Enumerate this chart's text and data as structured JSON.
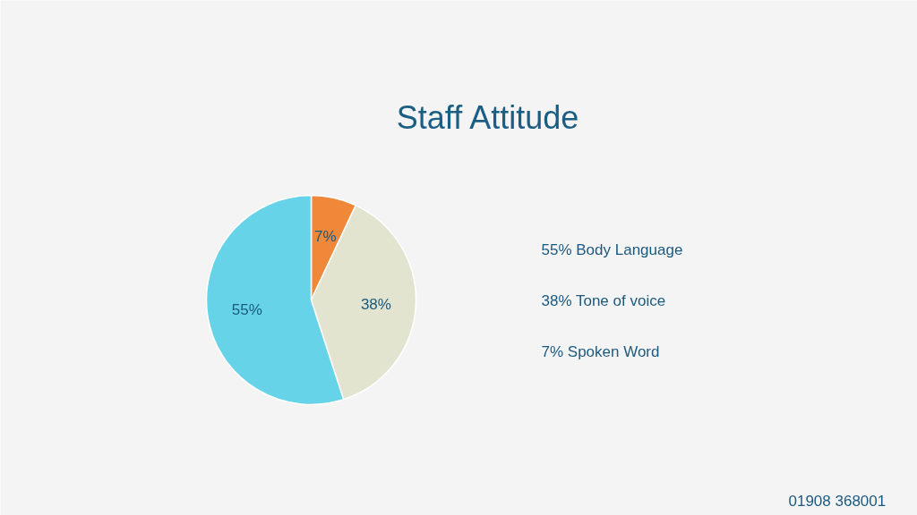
{
  "chart_data": {
    "type": "pie",
    "title": "Staff Attitude",
    "categories": [
      null,
      null,
      null
    ],
    "values": [
      7,
      38,
      55
    ],
    "colors": [
      "#f0883a",
      "#e2e4d0",
      "#66d3e8"
    ],
    "value_labels": [
      "7%",
      "38%",
      "55%"
    ],
    "annotations": [
      "55% Body Language",
      "38% Tone of voice",
      "7% Spoken Word",
      "01908 368001"
    ]
  }
}
